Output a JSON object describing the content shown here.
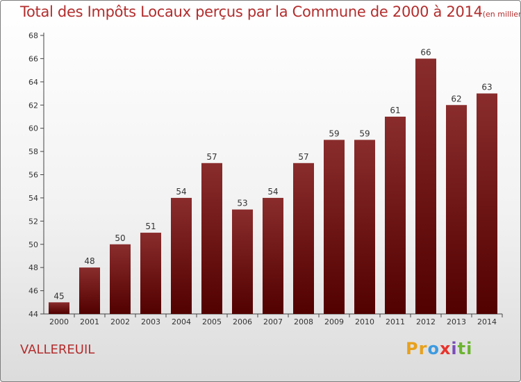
{
  "chart_data": {
    "type": "bar",
    "title": "Total des Impôts Locaux perçus par la Commune de 2000 à 2014",
    "unit": "(en milliers d'€)",
    "categories": [
      "2000",
      "2001",
      "2002",
      "2003",
      "2004",
      "2005",
      "2006",
      "2007",
      "2008",
      "2009",
      "2010",
      "2011",
      "2012",
      "2013",
      "2014"
    ],
    "values": [
      45,
      48,
      50,
      51,
      54,
      57,
      53,
      54,
      57,
      59,
      59,
      61,
      66,
      62,
      63
    ],
    "ylim": [
      44,
      68
    ],
    "yticks": [
      44,
      46,
      48,
      50,
      52,
      54,
      56,
      58,
      60,
      62,
      64,
      66,
      68
    ],
    "grid": false,
    "bar_color": "#7a1c1c"
  },
  "commune": "VALLEREUIL",
  "logo": {
    "parts": [
      "Pr",
      "o",
      "x",
      "i",
      "ti"
    ]
  }
}
